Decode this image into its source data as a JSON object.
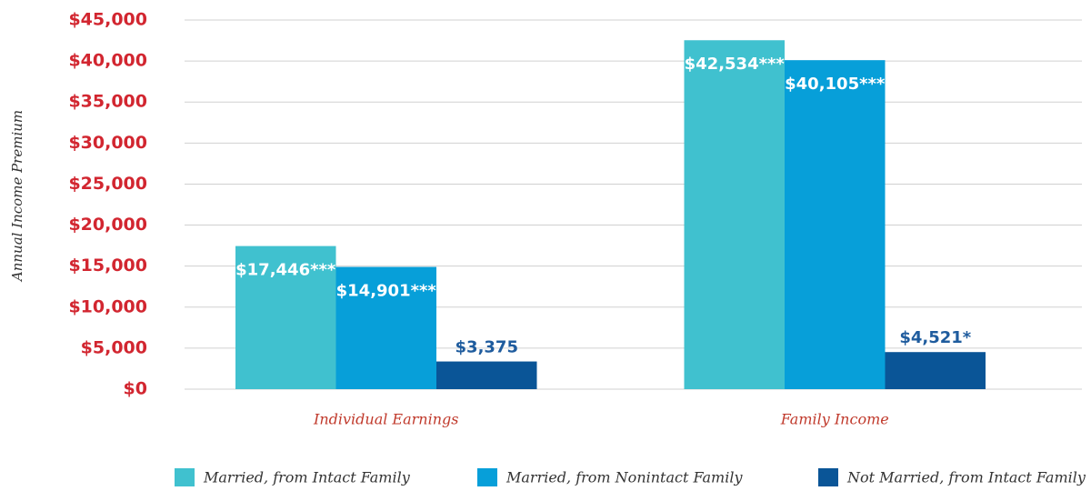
{
  "chart_data": {
    "type": "bar",
    "y_label": "Annual Income Premium",
    "categories": [
      "Individual Earnings",
      "Family Income"
    ],
    "series": [
      {
        "name": "Married, from Intact Family",
        "color": "#40c1cf",
        "values": [
          17446,
          42534
        ],
        "value_labels": [
          "$17,446***",
          "$42,534***"
        ]
      },
      {
        "name": "Married, from Nonintact Family",
        "color": "#079fd9",
        "values": [
          14901,
          40105
        ],
        "value_labels": [
          "$14,901***",
          "$40,105***"
        ]
      },
      {
        "name": "Not Married, from Intact Family",
        "color": "#0a5597",
        "values": [
          3375,
          4521
        ],
        "value_labels": [
          "$3,375",
          "$4,521*"
        ]
      }
    ],
    "ylim": [
      0,
      45000
    ],
    "yticks": [
      {
        "value": 0,
        "label": "$0"
      },
      {
        "value": 5000,
        "label": "$5,000"
      },
      {
        "value": 10000,
        "label": "$10,000"
      },
      {
        "value": 15000,
        "label": "$15,000"
      },
      {
        "value": 20000,
        "label": "$20,000"
      },
      {
        "value": 25000,
        "label": "$25,000"
      },
      {
        "value": 30000,
        "label": "$30,000"
      },
      {
        "value": 35000,
        "label": "$35,000"
      },
      {
        "value": 40000,
        "label": "$40,000"
      },
      {
        "value": 45000,
        "label": "$45,000"
      }
    ],
    "grid": true
  }
}
